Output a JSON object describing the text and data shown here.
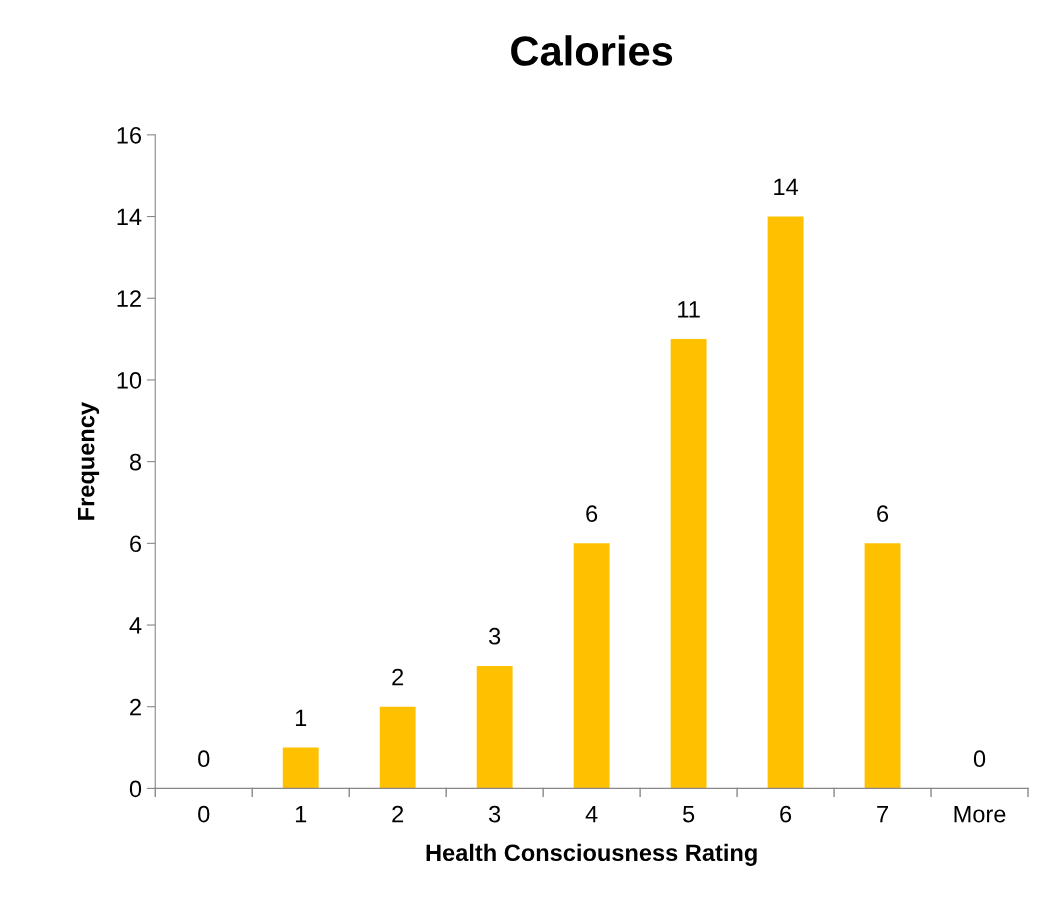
{
  "chart_data": {
    "type": "bar",
    "title": "Calories",
    "xlabel": "Health Consciousness Rating",
    "ylabel": "Frequency",
    "categories": [
      "0",
      "1",
      "2",
      "3",
      "4",
      "5",
      "6",
      "7",
      "More"
    ],
    "values": [
      0,
      1,
      2,
      3,
      6,
      11,
      14,
      6,
      0
    ],
    "color": "#ffc000",
    "ylim": [
      0,
      16
    ],
    "yticks": [
      0,
      2,
      4,
      6,
      8,
      10,
      12,
      14,
      16
    ],
    "data_labels": true,
    "grid": false,
    "legend": false
  }
}
